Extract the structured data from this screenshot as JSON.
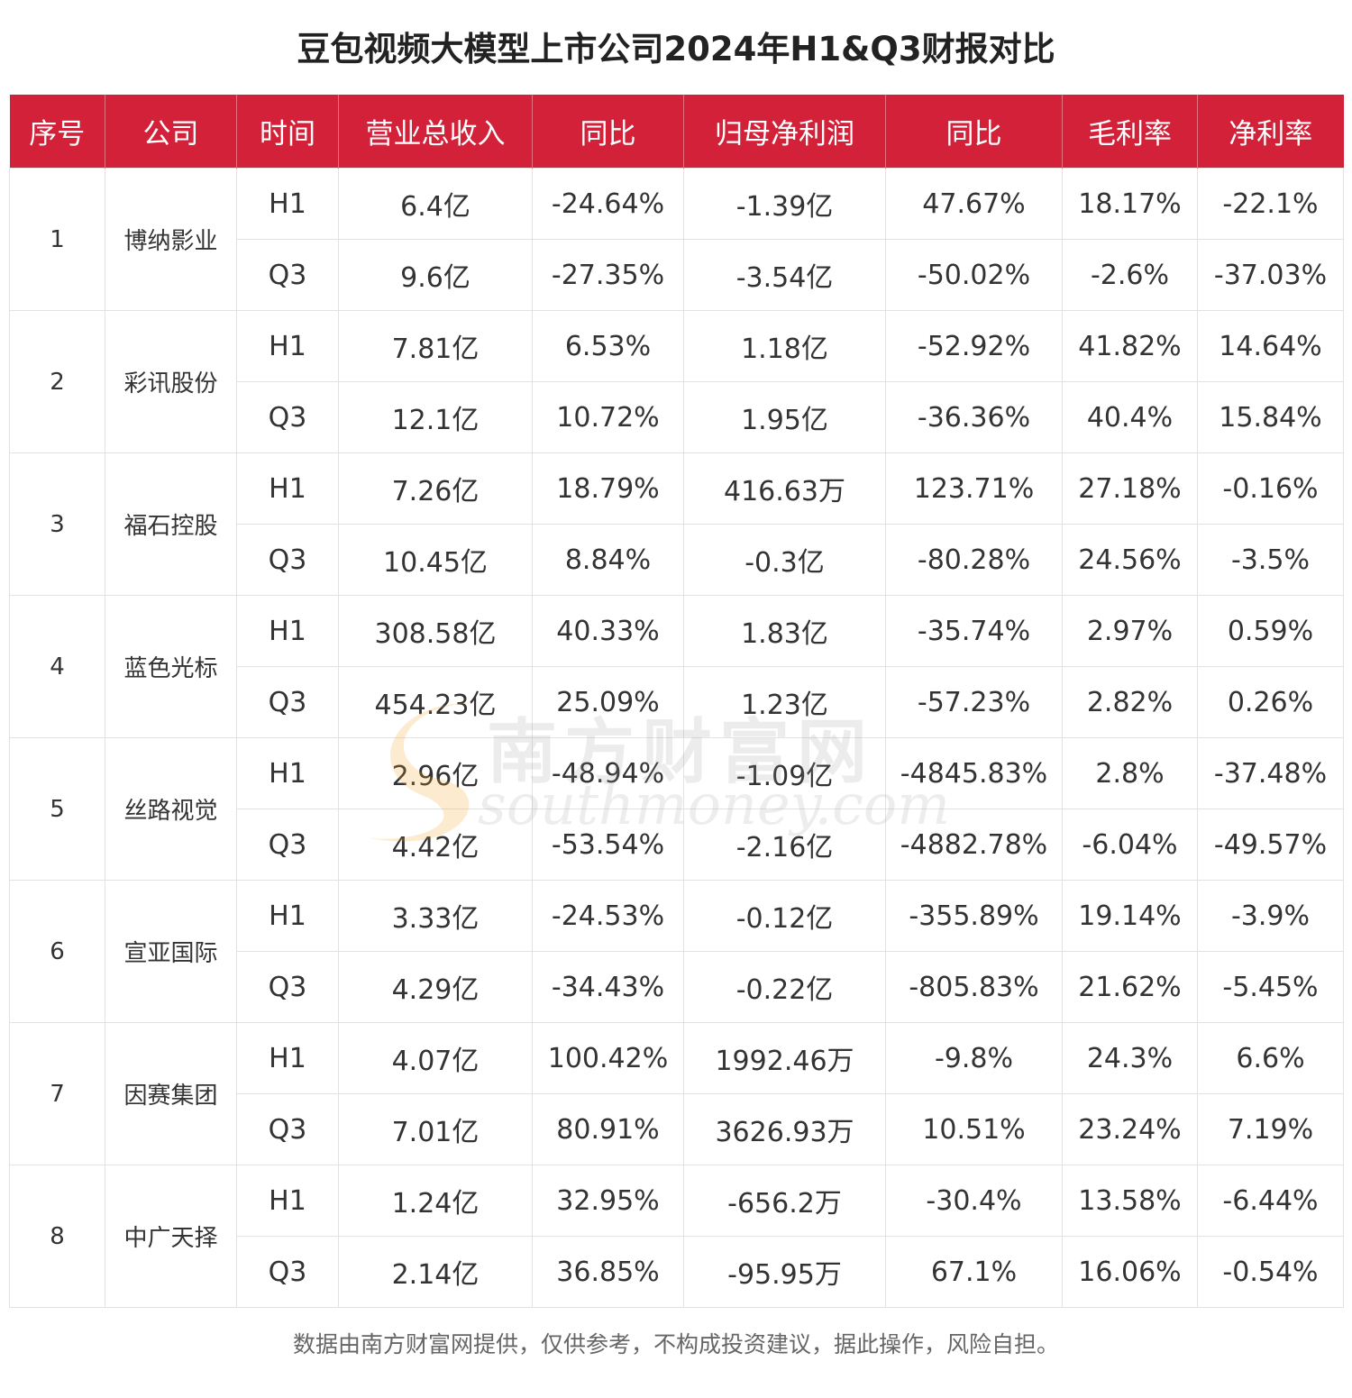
{
  "title": "豆包视频大模型上市公司2024年H1&Q3财报对比",
  "headers": [
    "序号",
    "公司",
    "时间",
    "营业总收入",
    "同比",
    "归母净利润",
    "同比",
    "毛利率",
    "净利率"
  ],
  "rows": [
    {
      "index": "1",
      "company": "博纳影业",
      "periods": [
        [
          "H1",
          "6.4亿",
          "-24.64%",
          "-1.39亿",
          "47.67%",
          "18.17%",
          "-22.1%"
        ],
        [
          "Q3",
          "9.6亿",
          "-27.35%",
          "-3.54亿",
          "-50.02%",
          "-2.6%",
          "-37.03%"
        ]
      ]
    },
    {
      "index": "2",
      "company": "彩讯股份",
      "periods": [
        [
          "H1",
          "7.81亿",
          "6.53%",
          "1.18亿",
          "-52.92%",
          "41.82%",
          "14.64%"
        ],
        [
          "Q3",
          "12.1亿",
          "10.72%",
          "1.95亿",
          "-36.36%",
          "40.4%",
          "15.84%"
        ]
      ]
    },
    {
      "index": "3",
      "company": "福石控股",
      "periods": [
        [
          "H1",
          "7.26亿",
          "18.79%",
          "416.63万",
          "123.71%",
          "27.18%",
          "-0.16%"
        ],
        [
          "Q3",
          "10.45亿",
          "8.84%",
          "-0.3亿",
          "-80.28%",
          "24.56%",
          "-3.5%"
        ]
      ]
    },
    {
      "index": "4",
      "company": "蓝色光标",
      "periods": [
        [
          "H1",
          "308.58亿",
          "40.33%",
          "1.83亿",
          "-35.74%",
          "2.97%",
          "0.59%"
        ],
        [
          "Q3",
          "454.23亿",
          "25.09%",
          "1.23亿",
          "-57.23%",
          "2.82%",
          "0.26%"
        ]
      ]
    },
    {
      "index": "5",
      "company": "丝路视觉",
      "periods": [
        [
          "H1",
          "2.96亿",
          "-48.94%",
          "-1.09亿",
          "-4845.83%",
          "2.8%",
          "-37.48%"
        ],
        [
          "Q3",
          "4.42亿",
          "-53.54%",
          "-2.16亿",
          "-4882.78%",
          "-6.04%",
          "-49.57%"
        ]
      ]
    },
    {
      "index": "6",
      "company": "宣亚国际",
      "periods": [
        [
          "H1",
          "3.33亿",
          "-24.53%",
          "-0.12亿",
          "-355.89%",
          "19.14%",
          "-3.9%"
        ],
        [
          "Q3",
          "4.29亿",
          "-34.43%",
          "-0.22亿",
          "-805.83%",
          "21.62%",
          "-5.45%"
        ]
      ]
    },
    {
      "index": "7",
      "company": "因赛集团",
      "periods": [
        [
          "H1",
          "4.07亿",
          "100.42%",
          "1992.46万",
          "-9.8%",
          "24.3%",
          "6.6%"
        ],
        [
          "Q3",
          "7.01亿",
          "80.91%",
          "3626.93万",
          "10.51%",
          "23.24%",
          "7.19%"
        ]
      ]
    },
    {
      "index": "8",
      "company": "中广天择",
      "periods": [
        [
          "H1",
          "1.24亿",
          "32.95%",
          "-656.2万",
          "-30.4%",
          "13.58%",
          "-6.44%"
        ],
        [
          "Q3",
          "2.14亿",
          "36.85%",
          "-95.95万",
          "67.1%",
          "16.06%",
          "-0.54%"
        ]
      ]
    }
  ],
  "watermark": {
    "cn": "南方财富网",
    "en": "southmoney.com",
    "color": "#f5a623"
  },
  "footer": "数据由南方财富网提供，仅供参考，不构成投资建议，据此操作，风险自担。",
  "colors": {
    "header_bg": "#d3213a",
    "header_text": "#ffffff"
  }
}
